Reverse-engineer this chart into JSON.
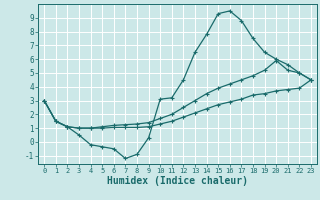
{
  "title": "",
  "xlabel": "Humidex (Indice chaleur)",
  "bg_color": "#cce8e8",
  "grid_color": "#ffffff",
  "line_color": "#1a6b6b",
  "marker": "+",
  "xlim": [
    -0.5,
    23.5
  ],
  "ylim": [
    -1.6,
    10.0
  ],
  "yticks": [
    -1,
    0,
    1,
    2,
    3,
    4,
    5,
    6,
    7,
    8,
    9
  ],
  "xticks": [
    0,
    1,
    2,
    3,
    4,
    5,
    6,
    7,
    8,
    9,
    10,
    11,
    12,
    13,
    14,
    15,
    16,
    17,
    18,
    19,
    20,
    21,
    22,
    23
  ],
  "curve1_x": [
    0,
    1,
    2,
    3,
    4,
    5,
    6,
    7,
    8,
    9,
    10,
    11,
    12,
    13,
    14,
    15,
    16,
    17,
    18,
    19,
    20,
    21,
    22,
    23
  ],
  "curve1_y": [
    3.0,
    1.5,
    1.1,
    0.5,
    -0.2,
    -0.35,
    -0.5,
    -1.2,
    -0.9,
    0.3,
    3.1,
    3.2,
    4.5,
    6.5,
    7.8,
    9.3,
    9.5,
    8.8,
    7.5,
    6.5,
    6.0,
    5.6,
    5.0,
    4.5
  ],
  "curve2_x": [
    0,
    1,
    2,
    3,
    4,
    5,
    6,
    7,
    8,
    9,
    10,
    11,
    12,
    13,
    14,
    15,
    16,
    17,
    18,
    19,
    20,
    21,
    22,
    23
  ],
  "curve2_y": [
    3.0,
    1.5,
    1.1,
    1.0,
    1.0,
    1.0,
    1.05,
    1.05,
    1.05,
    1.1,
    1.3,
    1.5,
    1.8,
    2.1,
    2.4,
    2.7,
    2.9,
    3.1,
    3.4,
    3.5,
    3.7,
    3.8,
    3.9,
    4.5
  ],
  "curve3_x": [
    0,
    1,
    2,
    3,
    4,
    5,
    6,
    7,
    8,
    9,
    10,
    11,
    12,
    13,
    14,
    15,
    16,
    17,
    18,
    19,
    20,
    21,
    22,
    23
  ],
  "curve3_y": [
    3.0,
    1.5,
    1.1,
    1.0,
    1.0,
    1.1,
    1.2,
    1.25,
    1.3,
    1.4,
    1.7,
    2.0,
    2.5,
    3.0,
    3.5,
    3.9,
    4.2,
    4.5,
    4.8,
    5.2,
    5.9,
    5.2,
    5.0,
    4.5
  ]
}
